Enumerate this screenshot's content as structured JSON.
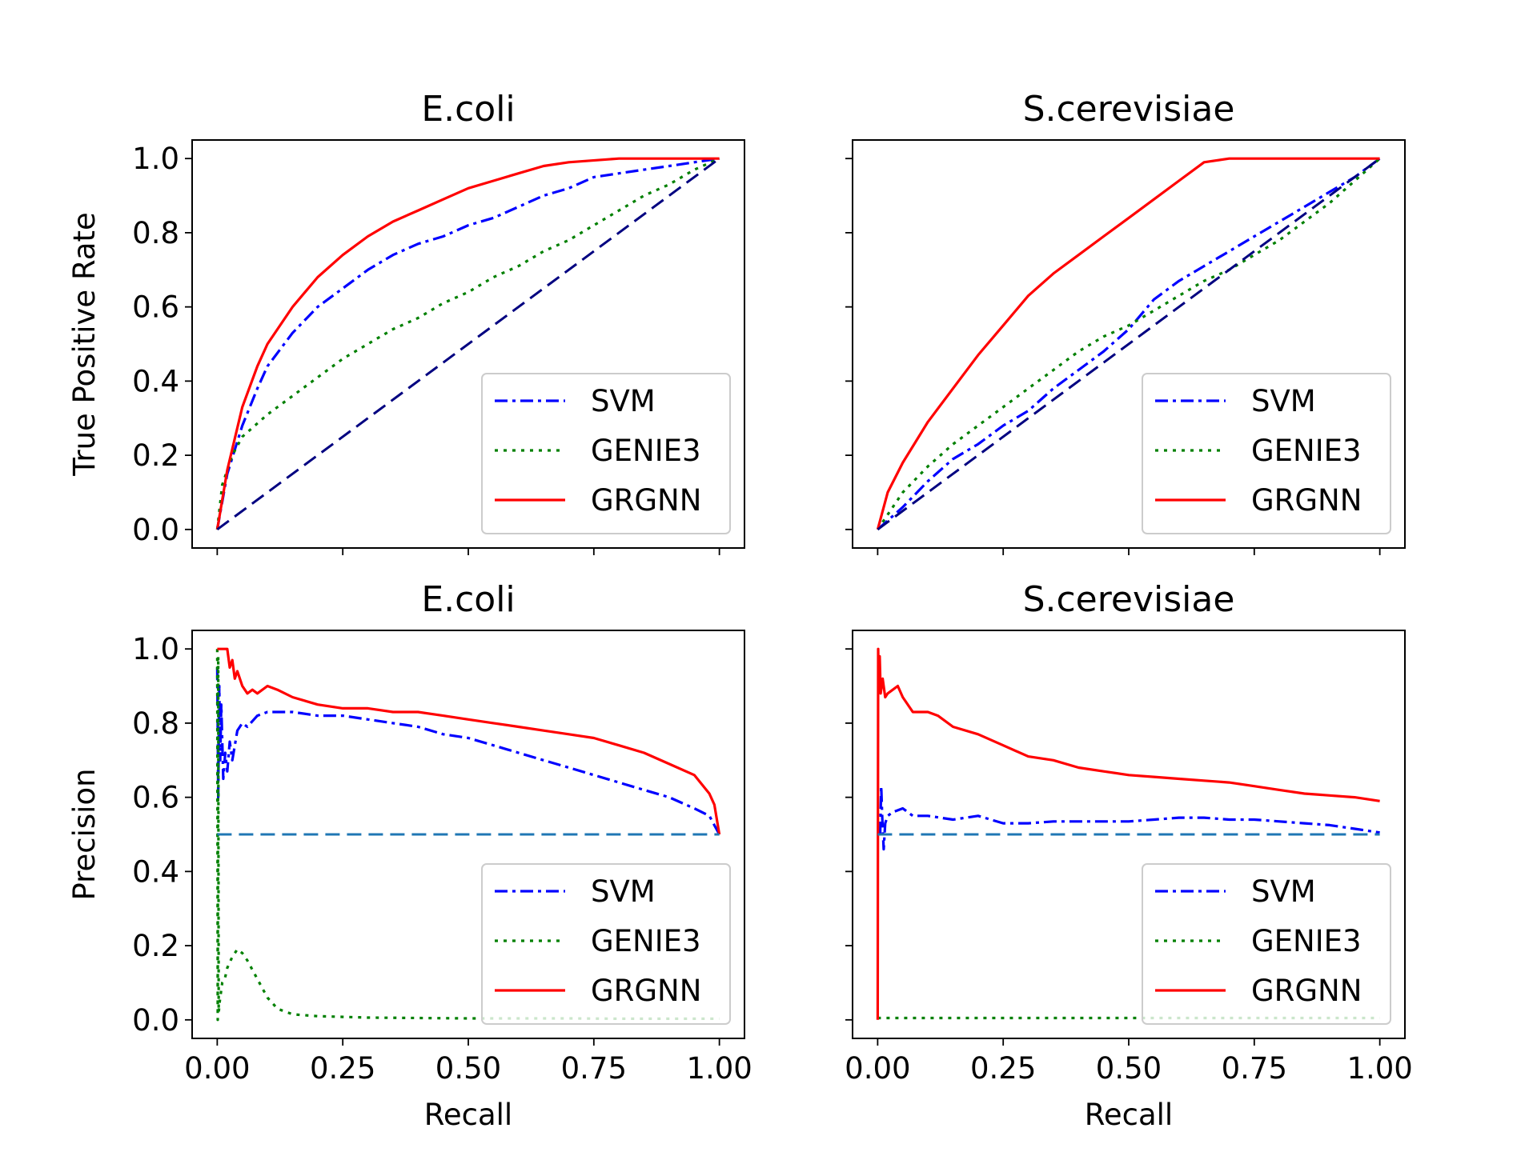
{
  "chart_data": [
    {
      "type": "line",
      "title": "E.coli",
      "xlabel": "",
      "ylabel": "True Positive Rate",
      "xlim": [
        -0.05,
        1.05
      ],
      "ylim": [
        -0.05,
        1.05
      ],
      "x_ticks": [
        "0.00",
        "0.25",
        "0.50",
        "0.75",
        "1.00"
      ],
      "x_tick_labels_visible": false,
      "y_ticks": [
        "0.0",
        "0.2",
        "0.4",
        "0.6",
        "0.8",
        "1.0"
      ],
      "y_tick_labels_visible": true,
      "legend": "bottom-right",
      "grid": false,
      "series": [
        {
          "name": "SVM",
          "color": "#0000ff",
          "style": "dashdot",
          "x": [
            0,
            0.02,
            0.05,
            0.08,
            0.1,
            0.15,
            0.2,
            0.25,
            0.3,
            0.35,
            0.4,
            0.45,
            0.5,
            0.55,
            0.6,
            0.65,
            0.7,
            0.75,
            0.8,
            0.85,
            0.9,
            0.95,
            1.0
          ],
          "y": [
            0,
            0.15,
            0.28,
            0.38,
            0.44,
            0.53,
            0.6,
            0.65,
            0.7,
            0.74,
            0.77,
            0.79,
            0.82,
            0.84,
            0.87,
            0.9,
            0.92,
            0.95,
            0.96,
            0.97,
            0.98,
            0.99,
            1.0
          ]
        },
        {
          "name": "GENIE3",
          "color": "#008000",
          "style": "dotted",
          "x": [
            0,
            0.01,
            0.03,
            0.05,
            0.1,
            0.15,
            0.2,
            0.25,
            0.3,
            0.35,
            0.4,
            0.45,
            0.5,
            0.55,
            0.6,
            0.65,
            0.7,
            0.75,
            0.8,
            0.85,
            0.9,
            0.95,
            1.0
          ],
          "y": [
            0,
            0.12,
            0.2,
            0.25,
            0.31,
            0.36,
            0.41,
            0.46,
            0.5,
            0.54,
            0.57,
            0.61,
            0.64,
            0.68,
            0.71,
            0.75,
            0.78,
            0.82,
            0.86,
            0.9,
            0.93,
            0.97,
            1.0
          ]
        },
        {
          "name": "GRGNN",
          "color": "#ff0000",
          "style": "solid",
          "x": [
            0,
            0.02,
            0.05,
            0.08,
            0.1,
            0.15,
            0.2,
            0.25,
            0.3,
            0.35,
            0.4,
            0.45,
            0.5,
            0.55,
            0.6,
            0.65,
            0.7,
            0.8,
            0.9,
            1.0
          ],
          "y": [
            0,
            0.16,
            0.33,
            0.44,
            0.5,
            0.6,
            0.68,
            0.74,
            0.79,
            0.83,
            0.86,
            0.89,
            0.92,
            0.94,
            0.96,
            0.98,
            0.99,
            1.0,
            1.0,
            1.0
          ]
        },
        {
          "name": "",
          "color": "#000080",
          "style": "dashed",
          "x": [
            0,
            1
          ],
          "y": [
            0,
            1
          ]
        }
      ]
    },
    {
      "type": "line",
      "title": "S.cerevisiae",
      "xlabel": "",
      "ylabel": "",
      "xlim": [
        -0.05,
        1.05
      ],
      "ylim": [
        -0.05,
        1.05
      ],
      "x_ticks": [
        "0.00",
        "0.25",
        "0.50",
        "0.75",
        "1.00"
      ],
      "x_tick_labels_visible": false,
      "y_ticks": [
        "0.0",
        "0.2",
        "0.4",
        "0.6",
        "0.8",
        "1.0"
      ],
      "y_tick_labels_visible": false,
      "legend": "bottom-right",
      "grid": false,
      "series": [
        {
          "name": "SVM",
          "color": "#0000ff",
          "style": "dashdot",
          "x": [
            0,
            0.05,
            0.1,
            0.15,
            0.2,
            0.25,
            0.3,
            0.35,
            0.4,
            0.45,
            0.5,
            0.55,
            0.6,
            0.65,
            0.7,
            0.75,
            0.8,
            0.85,
            0.9,
            0.95,
            1.0
          ],
          "y": [
            0,
            0.06,
            0.13,
            0.19,
            0.23,
            0.28,
            0.32,
            0.38,
            0.43,
            0.48,
            0.54,
            0.62,
            0.67,
            0.71,
            0.75,
            0.79,
            0.83,
            0.87,
            0.91,
            0.95,
            1.0
          ]
        },
        {
          "name": "GENIE3",
          "color": "#008000",
          "style": "dotted",
          "x": [
            0,
            0.05,
            0.1,
            0.15,
            0.2,
            0.25,
            0.3,
            0.35,
            0.4,
            0.45,
            0.5,
            0.55,
            0.6,
            0.65,
            0.7,
            0.75,
            0.8,
            0.85,
            0.9,
            0.95,
            1.0
          ],
          "y": [
            0,
            0.1,
            0.17,
            0.23,
            0.28,
            0.33,
            0.38,
            0.43,
            0.48,
            0.52,
            0.55,
            0.59,
            0.63,
            0.67,
            0.7,
            0.74,
            0.78,
            0.83,
            0.88,
            0.94,
            1.0
          ]
        },
        {
          "name": "GRGNN",
          "color": "#ff0000",
          "style": "solid",
          "x": [
            0,
            0.02,
            0.05,
            0.1,
            0.15,
            0.2,
            0.25,
            0.3,
            0.35,
            0.4,
            0.45,
            0.5,
            0.55,
            0.6,
            0.65,
            0.7,
            0.8,
            0.9,
            1.0
          ],
          "y": [
            0,
            0.1,
            0.18,
            0.29,
            0.38,
            0.47,
            0.55,
            0.63,
            0.69,
            0.74,
            0.79,
            0.84,
            0.89,
            0.94,
            0.99,
            1.0,
            1.0,
            1.0,
            1.0
          ]
        },
        {
          "name": "",
          "color": "#000080",
          "style": "dashed",
          "x": [
            0,
            1
          ],
          "y": [
            0,
            1
          ]
        }
      ]
    },
    {
      "type": "line",
      "title": "E.coli",
      "xlabel": "Recall",
      "ylabel": "Precision",
      "xlim": [
        -0.05,
        1.05
      ],
      "ylim": [
        -0.05,
        1.05
      ],
      "x_ticks": [
        "0.00",
        "0.25",
        "0.50",
        "0.75",
        "1.00"
      ],
      "x_tick_labels_visible": true,
      "y_ticks": [
        "0.0",
        "0.2",
        "0.4",
        "0.6",
        "0.8",
        "1.0"
      ],
      "y_tick_labels_visible": true,
      "legend": "bottom-right",
      "grid": false,
      "series": [
        {
          "name": "SVM",
          "color": "#0000ff",
          "style": "dashdot",
          "x": [
            0,
            0.002,
            0.004,
            0.006,
            0.008,
            0.012,
            0.016,
            0.02,
            0.025,
            0.03,
            0.04,
            0.05,
            0.06,
            0.08,
            0.1,
            0.15,
            0.2,
            0.25,
            0.3,
            0.35,
            0.4,
            0.45,
            0.5,
            0.55,
            0.6,
            0.65,
            0.7,
            0.75,
            0.8,
            0.85,
            0.9,
            0.95,
            0.98,
            1.0
          ],
          "y": [
            0.95,
            0.6,
            0.9,
            0.7,
            0.85,
            0.65,
            0.72,
            0.67,
            0.75,
            0.7,
            0.78,
            0.8,
            0.79,
            0.82,
            0.83,
            0.83,
            0.82,
            0.82,
            0.81,
            0.8,
            0.79,
            0.77,
            0.76,
            0.74,
            0.72,
            0.7,
            0.68,
            0.66,
            0.64,
            0.62,
            0.6,
            0.57,
            0.55,
            0.5
          ]
        },
        {
          "name": "GENIE3",
          "color": "#008000",
          "style": "dotted",
          "x": [
            0,
            0.001,
            0.002,
            0.003,
            0.005,
            0.01,
            0.015,
            0.02,
            0.03,
            0.04,
            0.05,
            0.06,
            0.08,
            0.1,
            0.12,
            0.15,
            0.2,
            0.25,
            0.3,
            0.4,
            0.5,
            0.6,
            0.7,
            0.8,
            0.9,
            1.0
          ],
          "y": [
            1.0,
            0.0,
            0.98,
            0.02,
            0.05,
            0.1,
            0.11,
            0.14,
            0.17,
            0.19,
            0.18,
            0.16,
            0.11,
            0.06,
            0.03,
            0.015,
            0.01,
            0.008,
            0.006,
            0.005,
            0.004,
            0.004,
            0.004,
            0.003,
            0.003,
            0.003
          ]
        },
        {
          "name": "GRGNN",
          "color": "#ff0000",
          "style": "solid",
          "x": [
            0,
            0.02,
            0.025,
            0.03,
            0.035,
            0.04,
            0.05,
            0.06,
            0.07,
            0.08,
            0.1,
            0.12,
            0.15,
            0.2,
            0.25,
            0.3,
            0.35,
            0.4,
            0.45,
            0.5,
            0.55,
            0.6,
            0.65,
            0.7,
            0.75,
            0.8,
            0.85,
            0.9,
            0.95,
            0.98,
            0.99,
            1.0
          ],
          "y": [
            1.0,
            1.0,
            0.95,
            0.97,
            0.92,
            0.94,
            0.9,
            0.88,
            0.89,
            0.88,
            0.9,
            0.89,
            0.87,
            0.85,
            0.84,
            0.84,
            0.83,
            0.83,
            0.82,
            0.81,
            0.8,
            0.79,
            0.78,
            0.77,
            0.76,
            0.74,
            0.72,
            0.69,
            0.66,
            0.61,
            0.58,
            0.5
          ]
        },
        {
          "name": "",
          "color": "#1f77b4",
          "style": "dashed",
          "x": [
            0,
            1
          ],
          "y": [
            0.5,
            0.5
          ]
        }
      ]
    },
    {
      "type": "line",
      "title": "S.cerevisiae",
      "xlabel": "Recall",
      "ylabel": "",
      "xlim": [
        -0.05,
        1.05
      ],
      "ylim": [
        -0.05,
        1.05
      ],
      "x_ticks": [
        "0.00",
        "0.25",
        "0.50",
        "0.75",
        "1.00"
      ],
      "x_tick_labels_visible": true,
      "y_ticks": [
        "0.0",
        "0.2",
        "0.4",
        "0.6",
        "0.8",
        "1.0"
      ],
      "y_tick_labels_visible": false,
      "legend": "bottom-right",
      "grid": false,
      "series": [
        {
          "name": "SVM",
          "color": "#0000ff",
          "style": "dashdot",
          "x": [
            0.005,
            0.007,
            0.009,
            0.012,
            0.015,
            0.02,
            0.03,
            0.05,
            0.07,
            0.1,
            0.15,
            0.2,
            0.25,
            0.3,
            0.35,
            0.4,
            0.45,
            0.5,
            0.55,
            0.6,
            0.65,
            0.7,
            0.75,
            0.8,
            0.85,
            0.9,
            0.95,
            1.0
          ],
          "y": [
            0.5,
            0.63,
            0.55,
            0.46,
            0.53,
            0.55,
            0.56,
            0.57,
            0.55,
            0.55,
            0.54,
            0.55,
            0.53,
            0.53,
            0.535,
            0.535,
            0.535,
            0.535,
            0.54,
            0.545,
            0.545,
            0.54,
            0.54,
            0.535,
            0.53,
            0.525,
            0.515,
            0.505
          ]
        },
        {
          "name": "GENIE3",
          "color": "#008000",
          "style": "dotted",
          "x": [
            0,
            0.1,
            0.2,
            0.3,
            0.4,
            0.5,
            0.6,
            0.7,
            0.8,
            0.9,
            1.0
          ],
          "y": [
            0.005,
            0.005,
            0.005,
            0.005,
            0.005,
            0.005,
            0.005,
            0.005,
            0.005,
            0.005,
            0.005
          ]
        },
        {
          "name": "GRGNN",
          "color": "#ff0000",
          "style": "solid",
          "x": [
            0,
            0.001,
            0.002,
            0.004,
            0.006,
            0.01,
            0.015,
            0.02,
            0.03,
            0.04,
            0.05,
            0.07,
            0.1,
            0.12,
            0.15,
            0.2,
            0.25,
            0.3,
            0.35,
            0.4,
            0.45,
            0.5,
            0.55,
            0.6,
            0.65,
            0.7,
            0.75,
            0.8,
            0.85,
            0.9,
            0.95,
            1.0
          ],
          "y": [
            0.0,
            1.0,
            0.9,
            0.98,
            0.88,
            0.92,
            0.87,
            0.88,
            0.89,
            0.9,
            0.87,
            0.83,
            0.83,
            0.82,
            0.79,
            0.77,
            0.74,
            0.71,
            0.7,
            0.68,
            0.67,
            0.66,
            0.655,
            0.65,
            0.645,
            0.64,
            0.63,
            0.62,
            0.61,
            0.605,
            0.6,
            0.59
          ]
        },
        {
          "name": "",
          "color": "#1f77b4",
          "style": "dashed",
          "x": [
            0,
            1
          ],
          "y": [
            0.5,
            0.5
          ]
        }
      ]
    }
  ]
}
